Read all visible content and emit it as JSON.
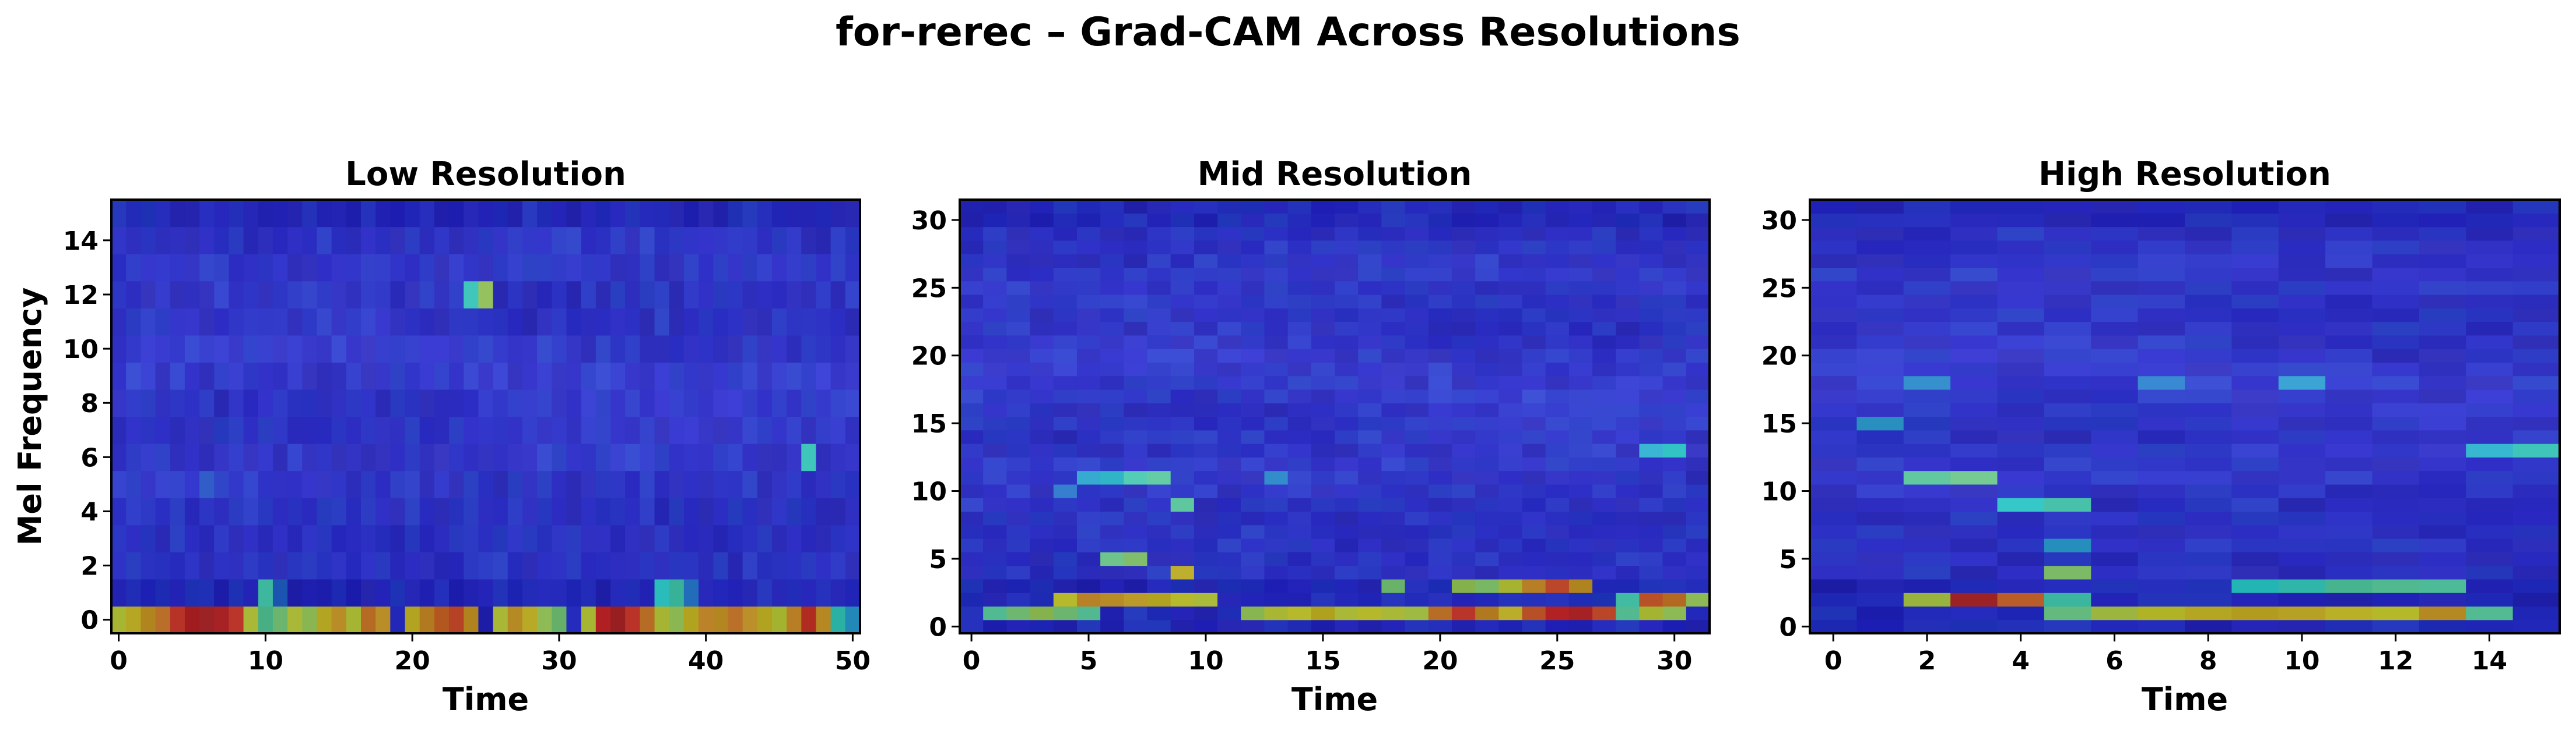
{
  "figure": {
    "title": "for-rerec – Grad-CAM Across Resolutions"
  },
  "colors": {
    "background": "#ffffff",
    "overlay_base": "#4a4f9a",
    "colormap": "jet"
  },
  "chart_data": [
    {
      "type": "heatmap",
      "title": "Low Resolution",
      "xlabel": "Time",
      "ylabel": "Mel Frequency",
      "cols": 51,
      "rows": 16,
      "xlim": [
        -0.5,
        50.5
      ],
      "ylim": [
        -0.5,
        15.5
      ],
      "xticks": [
        0,
        10,
        20,
        30,
        40,
        50
      ],
      "yticks": [
        0,
        2,
        4,
        6,
        8,
        10,
        12,
        14
      ],
      "grid": false,
      "hotspots": [
        {
          "t": 0,
          "f": 0,
          "v": 0.6
        },
        {
          "t": 1,
          "f": 0,
          "v": 0.65
        },
        {
          "t": 2,
          "f": 0,
          "v": 0.7
        },
        {
          "t": 3,
          "f": 0,
          "v": 0.75
        },
        {
          "t": 4,
          "f": 0,
          "v": 0.85
        },
        {
          "t": 5,
          "f": 0,
          "v": 0.9
        },
        {
          "t": 6,
          "f": 0,
          "v": 0.92
        },
        {
          "t": 7,
          "f": 0,
          "v": 0.9
        },
        {
          "t": 8,
          "f": 0,
          "v": 0.85
        },
        {
          "t": 9,
          "f": 0,
          "v": 0.6
        },
        {
          "t": 10,
          "f": 0,
          "v": 0.45
        },
        {
          "t": 11,
          "f": 0,
          "v": 0.5
        },
        {
          "t": 12,
          "f": 0,
          "v": 0.6
        },
        {
          "t": 13,
          "f": 0,
          "v": 0.55
        },
        {
          "t": 14,
          "f": 0,
          "v": 0.65
        },
        {
          "t": 15,
          "f": 0,
          "v": 0.7
        },
        {
          "t": 16,
          "f": 0,
          "v": 0.6
        },
        {
          "t": 17,
          "f": 0,
          "v": 0.75
        },
        {
          "t": 18,
          "f": 0,
          "v": 0.7
        },
        {
          "t": 20,
          "f": 0,
          "v": 0.65
        },
        {
          "t": 21,
          "f": 0,
          "v": 0.72
        },
        {
          "t": 22,
          "f": 0,
          "v": 0.78
        },
        {
          "t": 23,
          "f": 0,
          "v": 0.82
        },
        {
          "t": 24,
          "f": 0,
          "v": 0.7
        },
        {
          "t": 26,
          "f": 0,
          "v": 0.6
        },
        {
          "t": 27,
          "f": 0,
          "v": 0.7
        },
        {
          "t": 28,
          "f": 0,
          "v": 0.65
        },
        {
          "t": 29,
          "f": 0,
          "v": 0.55
        },
        {
          "t": 30,
          "f": 0,
          "v": 0.5
        },
        {
          "t": 32,
          "f": 0,
          "v": 0.6
        },
        {
          "t": 33,
          "f": 0,
          "v": 0.88
        },
        {
          "t": 34,
          "f": 0,
          "v": 0.92
        },
        {
          "t": 35,
          "f": 0,
          "v": 0.85
        },
        {
          "t": 36,
          "f": 0,
          "v": 0.75
        },
        {
          "t": 37,
          "f": 0,
          "v": 0.6
        },
        {
          "t": 38,
          "f": 0,
          "v": 0.55
        },
        {
          "t": 39,
          "f": 0,
          "v": 0.65
        },
        {
          "t": 40,
          "f": 0,
          "v": 0.72
        },
        {
          "t": 41,
          "f": 0,
          "v": 0.7
        },
        {
          "t": 42,
          "f": 0,
          "v": 0.75
        },
        {
          "t": 43,
          "f": 0,
          "v": 0.7
        },
        {
          "t": 44,
          "f": 0,
          "v": 0.65
        },
        {
          "t": 45,
          "f": 0,
          "v": 0.6
        },
        {
          "t": 46,
          "f": 0,
          "v": 0.72
        },
        {
          "t": 47,
          "f": 0,
          "v": 0.85
        },
        {
          "t": 48,
          "f": 0,
          "v": 0.7
        },
        {
          "t": 49,
          "f": 0,
          "v": 0.4
        },
        {
          "t": 50,
          "f": 0,
          "v": 0.3
        },
        {
          "t": 10,
          "f": 1,
          "v": 0.42
        },
        {
          "t": 37,
          "f": 1,
          "v": 0.38
        },
        {
          "t": 38,
          "f": 1,
          "v": 0.42
        },
        {
          "t": 24,
          "f": 12,
          "v": 0.4
        },
        {
          "t": 25,
          "f": 12,
          "v": 0.55
        },
        {
          "t": 47,
          "f": 6,
          "v": 0.4
        },
        {
          "t": 11,
          "f": 1,
          "v": 0.22
        },
        {
          "t": 39,
          "f": 1,
          "v": 0.25
        },
        {
          "t": 6,
          "f": 5,
          "v": 0.2
        }
      ]
    },
    {
      "type": "heatmap",
      "title": "Mid Resolution",
      "xlabel": "Time",
      "ylabel": "",
      "cols": 32,
      "rows": 32,
      "xlim": [
        -0.5,
        31.5
      ],
      "ylim": [
        -0.5,
        31.5
      ],
      "xticks": [
        0,
        5,
        10,
        15,
        20,
        25,
        30
      ],
      "yticks": [
        0,
        5,
        10,
        15,
        20,
        25,
        30
      ],
      "grid": false,
      "hotspots": [
        {
          "t": 1,
          "f": 1,
          "v": 0.45
        },
        {
          "t": 2,
          "f": 1,
          "v": 0.5
        },
        {
          "t": 3,
          "f": 1,
          "v": 0.55
        },
        {
          "t": 4,
          "f": 1,
          "v": 0.5
        },
        {
          "t": 5,
          "f": 1,
          "v": 0.45
        },
        {
          "t": 12,
          "f": 1,
          "v": 0.55
        },
        {
          "t": 13,
          "f": 1,
          "v": 0.6
        },
        {
          "t": 14,
          "f": 1,
          "v": 0.62
        },
        {
          "t": 15,
          "f": 1,
          "v": 0.65
        },
        {
          "t": 16,
          "f": 1,
          "v": 0.6
        },
        {
          "t": 17,
          "f": 1,
          "v": 0.62
        },
        {
          "t": 18,
          "f": 1,
          "v": 0.6
        },
        {
          "t": 19,
          "f": 1,
          "v": 0.58
        },
        {
          "t": 20,
          "f": 1,
          "v": 0.75
        },
        {
          "t": 21,
          "f": 1,
          "v": 0.85
        },
        {
          "t": 22,
          "f": 1,
          "v": 0.72
        },
        {
          "t": 23,
          "f": 1,
          "v": 0.65
        },
        {
          "t": 24,
          "f": 1,
          "v": 0.8
        },
        {
          "t": 25,
          "f": 1,
          "v": 0.88
        },
        {
          "t": 26,
          "f": 1,
          "v": 0.9
        },
        {
          "t": 27,
          "f": 1,
          "v": 0.82
        },
        {
          "t": 28,
          "f": 1,
          "v": 0.45
        },
        {
          "t": 29,
          "f": 1,
          "v": 0.6
        },
        {
          "t": 30,
          "f": 1,
          "v": 0.55
        },
        {
          "t": 4,
          "f": 2,
          "v": 0.62
        },
        {
          "t": 5,
          "f": 2,
          "v": 0.72
        },
        {
          "t": 6,
          "f": 2,
          "v": 0.7
        },
        {
          "t": 7,
          "f": 2,
          "v": 0.68
        },
        {
          "t": 8,
          "f": 2,
          "v": 0.65
        },
        {
          "t": 9,
          "f": 2,
          "v": 0.62
        },
        {
          "t": 10,
          "f": 2,
          "v": 0.6
        },
        {
          "t": 28,
          "f": 2,
          "v": 0.42
        },
        {
          "t": 29,
          "f": 2,
          "v": 0.8
        },
        {
          "t": 30,
          "f": 2,
          "v": 0.75
        },
        {
          "t": 31,
          "f": 2,
          "v": 0.55
        },
        {
          "t": 18,
          "f": 3,
          "v": 0.5
        },
        {
          "t": 21,
          "f": 3,
          "v": 0.55
        },
        {
          "t": 22,
          "f": 3,
          "v": 0.52
        },
        {
          "t": 23,
          "f": 3,
          "v": 0.6
        },
        {
          "t": 24,
          "f": 3,
          "v": 0.72
        },
        {
          "t": 25,
          "f": 3,
          "v": 0.82
        },
        {
          "t": 26,
          "f": 3,
          "v": 0.7
        },
        {
          "t": 9,
          "f": 4,
          "v": 0.65
        },
        {
          "t": 6,
          "f": 5,
          "v": 0.48
        },
        {
          "t": 7,
          "f": 5,
          "v": 0.52
        },
        {
          "t": 7,
          "f": 11,
          "v": 0.42
        },
        {
          "t": 8,
          "f": 11,
          "v": 0.45
        },
        {
          "t": 9,
          "f": 9,
          "v": 0.45
        },
        {
          "t": 30,
          "f": 13,
          "v": 0.38
        },
        {
          "t": 29,
          "f": 13,
          "v": 0.33
        },
        {
          "t": 13,
          "f": 11,
          "v": 0.28
        },
        {
          "t": 5,
          "f": 11,
          "v": 0.32
        },
        {
          "t": 6,
          "f": 11,
          "v": 0.35
        },
        {
          "t": 4,
          "f": 10,
          "v": 0.25
        }
      ]
    },
    {
      "type": "heatmap",
      "title": "High Resolution",
      "xlabel": "Time",
      "ylabel": "",
      "cols": 16,
      "rows": 32,
      "xlim": [
        -0.5,
        15.5
      ],
      "ylim": [
        -0.5,
        31.5
      ],
      "xticks": [
        0,
        2,
        4,
        6,
        8,
        10,
        12,
        14
      ],
      "yticks": [
        0,
        5,
        10,
        15,
        20,
        25,
        30
      ],
      "grid": false,
      "hotspots": [
        {
          "t": 5,
          "f": 1,
          "v": 0.48
        },
        {
          "t": 6,
          "f": 1,
          "v": 0.58
        },
        {
          "t": 7,
          "f": 1,
          "v": 0.62
        },
        {
          "t": 8,
          "f": 1,
          "v": 0.65
        },
        {
          "t": 9,
          "f": 1,
          "v": 0.66
        },
        {
          "t": 10,
          "f": 1,
          "v": 0.66
        },
        {
          "t": 11,
          "f": 1,
          "v": 0.64
        },
        {
          "t": 12,
          "f": 1,
          "v": 0.62
        },
        {
          "t": 13,
          "f": 1,
          "v": 0.7
        },
        {
          "t": 14,
          "f": 1,
          "v": 0.45
        },
        {
          "t": 2,
          "f": 2,
          "v": 0.58
        },
        {
          "t": 3,
          "f": 2,
          "v": 0.92
        },
        {
          "t": 4,
          "f": 2,
          "v": 0.78
        },
        {
          "t": 5,
          "f": 2,
          "v": 0.42
        },
        {
          "t": 9,
          "f": 3,
          "v": 0.38
        },
        {
          "t": 10,
          "f": 3,
          "v": 0.4
        },
        {
          "t": 11,
          "f": 3,
          "v": 0.44
        },
        {
          "t": 12,
          "f": 3,
          "v": 0.45
        },
        {
          "t": 13,
          "f": 3,
          "v": 0.44
        },
        {
          "t": 5,
          "f": 4,
          "v": 0.52
        },
        {
          "t": 5,
          "f": 6,
          "v": 0.3
        },
        {
          "t": 2,
          "f": 11,
          "v": 0.45
        },
        {
          "t": 3,
          "f": 11,
          "v": 0.48
        },
        {
          "t": 4,
          "f": 9,
          "v": 0.38
        },
        {
          "t": 5,
          "f": 9,
          "v": 0.42
        },
        {
          "t": 15,
          "f": 13,
          "v": 0.4
        },
        {
          "t": 14,
          "f": 13,
          "v": 0.34
        },
        {
          "t": 1,
          "f": 15,
          "v": 0.3
        },
        {
          "t": 2,
          "f": 18,
          "v": 0.28
        },
        {
          "t": 10,
          "f": 18,
          "v": 0.3
        },
        {
          "t": 7,
          "f": 18,
          "v": 0.26
        }
      ]
    }
  ]
}
